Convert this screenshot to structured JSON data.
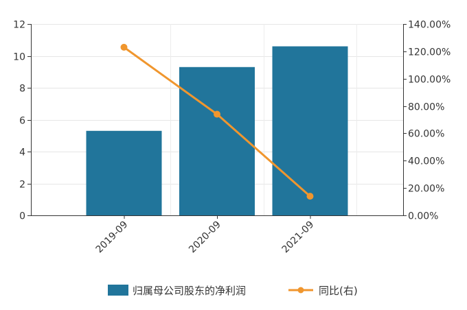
{
  "chart_data": {
    "type": "bar",
    "categories": [
      "2019-09",
      "2020-09",
      "2021-09"
    ],
    "series": [
      {
        "name": "归属母公司股东的净利润",
        "type": "bar",
        "axis": "left",
        "color": "#21759b",
        "values": [
          5.3,
          9.3,
          10.6
        ]
      },
      {
        "name": "同比(右)",
        "type": "line",
        "axis": "right",
        "color": "#f0962e",
        "values": [
          123.0,
          74.0,
          14.0
        ]
      }
    ],
    "left_axis": {
      "ylim": [
        0,
        12
      ],
      "ticks": [
        0,
        2,
        4,
        6,
        8,
        10,
        12
      ],
      "tick_labels": [
        "0",
        "2",
        "4",
        "6",
        "8",
        "10",
        "12"
      ]
    },
    "right_axis": {
      "ylim": [
        0,
        140
      ],
      "ticks": [
        0,
        20,
        40,
        60,
        80,
        100,
        120,
        140
      ],
      "tick_labels": [
        "0.00%",
        "20.00%",
        "40.00%",
        "60.00%",
        "80.00%",
        "100.00%",
        "120.00%",
        "140.00%"
      ]
    },
    "grid": true,
    "legend_position": "bottom"
  }
}
